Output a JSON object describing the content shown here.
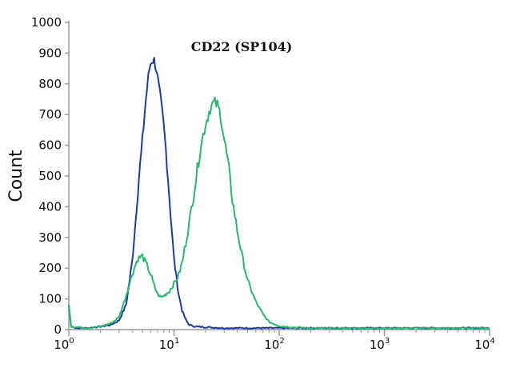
{
  "chart_data": {
    "type": "line",
    "title": "CD22 (SP104)",
    "ylabel": "Count",
    "xlabel": "",
    "x_scale": "log",
    "xlim": [
      1,
      10000
    ],
    "ylim": [
      0,
      1000
    ],
    "yticks": [
      0,
      100,
      200,
      300,
      400,
      500,
      600,
      700,
      800,
      900,
      1000
    ],
    "xticks": [
      {
        "value": 1,
        "base": "10",
        "exp": "0"
      },
      {
        "value": 10,
        "base": "10",
        "exp": "1"
      },
      {
        "value": 100,
        "base": "10",
        "exp": "2"
      },
      {
        "value": 1000,
        "base": "10",
        "exp": "3"
      },
      {
        "value": 10000,
        "base": "10",
        "exp": "4"
      }
    ],
    "grid": false,
    "series": [
      {
        "color": "#1f3c99",
        "x": [
          1,
          1.05,
          1.2,
          1.5,
          2,
          2.5,
          3,
          3.5,
          4,
          4.3,
          4.6,
          5,
          5.3,
          5.6,
          5.9,
          6.2,
          6.5,
          6.8,
          7.1,
          7.5,
          8,
          8.5,
          9,
          9.5,
          10,
          11,
          12,
          13,
          14,
          16,
          20,
          30,
          50,
          100,
          10000
        ],
        "y": [
          80,
          10,
          5,
          5,
          10,
          15,
          30,
          80,
          220,
          350,
          480,
          610,
          720,
          800,
          860,
          880,
          875,
          850,
          800,
          740,
          660,
          560,
          440,
          330,
          230,
          120,
          60,
          30,
          15,
          10,
          8,
          5,
          5,
          5,
          5
        ]
      },
      {
        "color": "#2bb673",
        "x": [
          1,
          1.05,
          1.5,
          2,
          2.5,
          3,
          3.5,
          4,
          4.5,
          5,
          5.5,
          6,
          6.5,
          7,
          7.5,
          8,
          9,
          10,
          11,
          12,
          14,
          16,
          18,
          20,
          22,
          24,
          26,
          28,
          30,
          33,
          36,
          40,
          45,
          50,
          60,
          70,
          80,
          100,
          130,
          200,
          10000
        ],
        "y": [
          80,
          10,
          5,
          10,
          20,
          40,
          110,
          180,
          230,
          240,
          210,
          180,
          140,
          115,
          105,
          110,
          125,
          150,
          175,
          220,
          350,
          480,
          600,
          670,
          720,
          740,
          730,
          690,
          620,
          530,
          420,
          320,
          230,
          160,
          90,
          50,
          25,
          12,
          8,
          5,
          5
        ]
      }
    ]
  }
}
